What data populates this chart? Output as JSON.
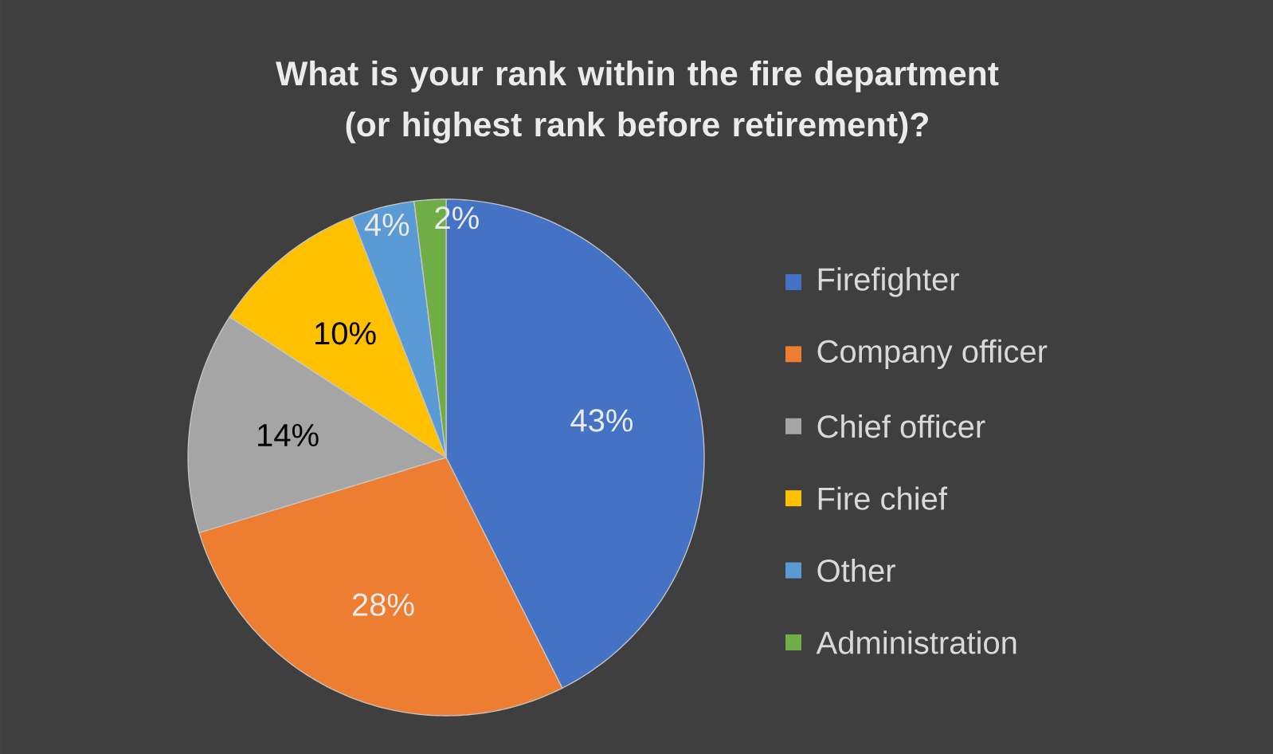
{
  "chart_data": {
    "type": "pie",
    "title": "What is your rank within the fire department (or highest rank before retirement)?",
    "categories": [
      "Firefighter",
      "Company officer",
      "Chief officer",
      "Fire chief",
      "Other",
      "Administration"
    ],
    "values": [
      43,
      28,
      14,
      10,
      4,
      2
    ],
    "value_labels": [
      "43%",
      "28%",
      "14%",
      "10%",
      "4%",
      "2%"
    ],
    "colors": [
      "#4472c4",
      "#ed7d31",
      "#a5a5a5",
      "#ffc000",
      "#5b9bd5",
      "#70ad47"
    ],
    "legend": "right"
  }
}
